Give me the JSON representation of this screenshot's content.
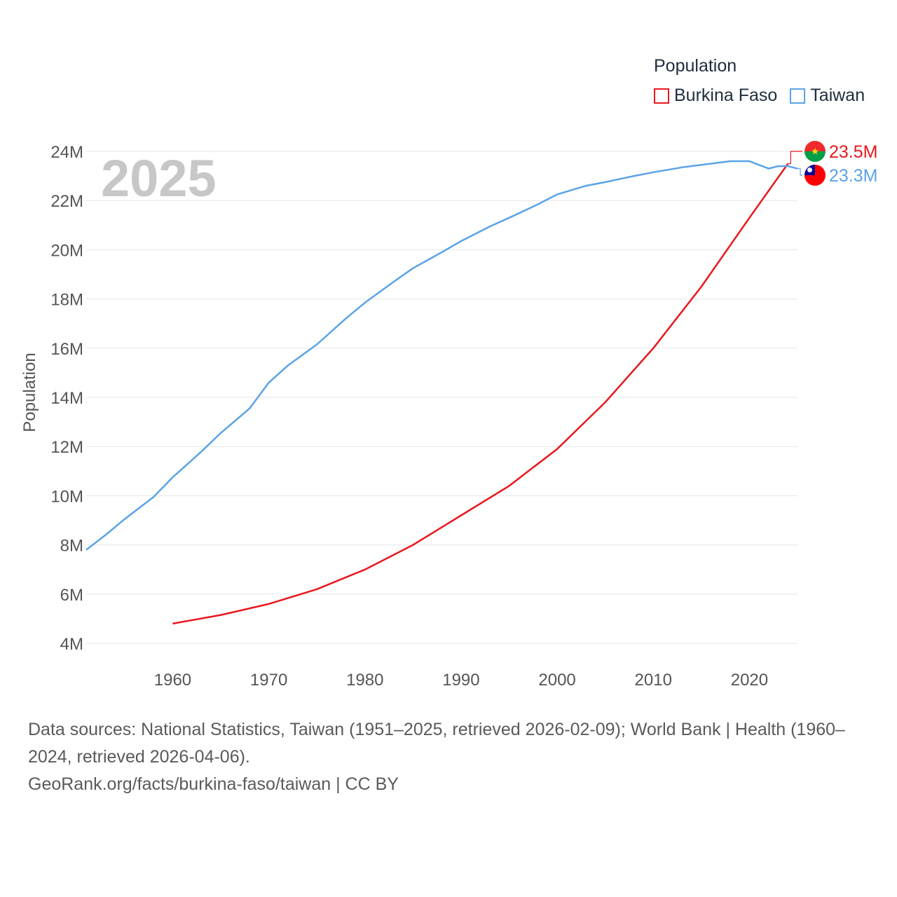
{
  "chart_data": {
    "type": "line",
    "year_label": "2025",
    "ylabel": "Population",
    "xlabel": "",
    "xlim": [
      1951,
      2025
    ],
    "ylim": [
      4000000,
      24000000
    ],
    "x_ticks": [
      1960,
      1970,
      1980,
      1990,
      2000,
      2010,
      2020
    ],
    "x_tick_labels": [
      "1960",
      "1970",
      "1980",
      "1990",
      "2000",
      "2010",
      "2020"
    ],
    "y_ticks": [
      4000000,
      6000000,
      8000000,
      10000000,
      12000000,
      14000000,
      16000000,
      18000000,
      20000000,
      22000000,
      24000000
    ],
    "y_tick_labels": [
      "4M",
      "6M",
      "8M",
      "10M",
      "12M",
      "14M",
      "16M",
      "18M",
      "20M",
      "22M",
      "24M"
    ],
    "legend_title": "Population",
    "series": [
      {
        "name": "Burkina Faso",
        "color": "#e8181d",
        "end_label": "23.5M",
        "flag": "burkina-faso-flag-icon",
        "points": [
          [
            1960,
            4800000
          ],
          [
            1965,
            5150000
          ],
          [
            1970,
            5600000
          ],
          [
            1975,
            6200000
          ],
          [
            1980,
            7000000
          ],
          [
            1985,
            8000000
          ],
          [
            1990,
            9200000
          ],
          [
            1995,
            10400000
          ],
          [
            2000,
            11900000
          ],
          [
            2005,
            13800000
          ],
          [
            2010,
            16000000
          ],
          [
            2015,
            18500000
          ],
          [
            2020,
            21300000
          ],
          [
            2024,
            23500000
          ]
        ]
      },
      {
        "name": "Taiwan",
        "color": "#5ba3e6",
        "end_label": "23.3M",
        "flag": "taiwan-flag-icon",
        "points": [
          [
            1951,
            7800000
          ],
          [
            1953,
            8400000
          ],
          [
            1955,
            9050000
          ],
          [
            1958,
            9950000
          ],
          [
            1960,
            10750000
          ],
          [
            1963,
            11800000
          ],
          [
            1965,
            12550000
          ],
          [
            1968,
            13550000
          ],
          [
            1970,
            14600000
          ],
          [
            1972,
            15300000
          ],
          [
            1975,
            16150000
          ],
          [
            1978,
            17200000
          ],
          [
            1980,
            17850000
          ],
          [
            1983,
            18700000
          ],
          [
            1985,
            19250000
          ],
          [
            1988,
            19900000
          ],
          [
            1990,
            20350000
          ],
          [
            1993,
            20950000
          ],
          [
            1995,
            21300000
          ],
          [
            1998,
            21850000
          ],
          [
            2000,
            22250000
          ],
          [
            2003,
            22600000
          ],
          [
            2005,
            22750000
          ],
          [
            2008,
            23000000
          ],
          [
            2010,
            23150000
          ],
          [
            2013,
            23350000
          ],
          [
            2015,
            23450000
          ],
          [
            2018,
            23600000
          ],
          [
            2020,
            23600000
          ],
          [
            2021,
            23450000
          ],
          [
            2022,
            23300000
          ],
          [
            2023,
            23400000
          ],
          [
            2024,
            23400000
          ],
          [
            2025,
            23300000
          ]
        ]
      }
    ]
  },
  "footer": {
    "line1": "Data sources: National Statistics, Taiwan (1951–2025, retrieved 2026-02-09); World Bank | Health (1960–2024, retrieved 2026-04-06).",
    "line2": "GeoRank.org/facts/burkina-faso/taiwan | CC BY"
  }
}
